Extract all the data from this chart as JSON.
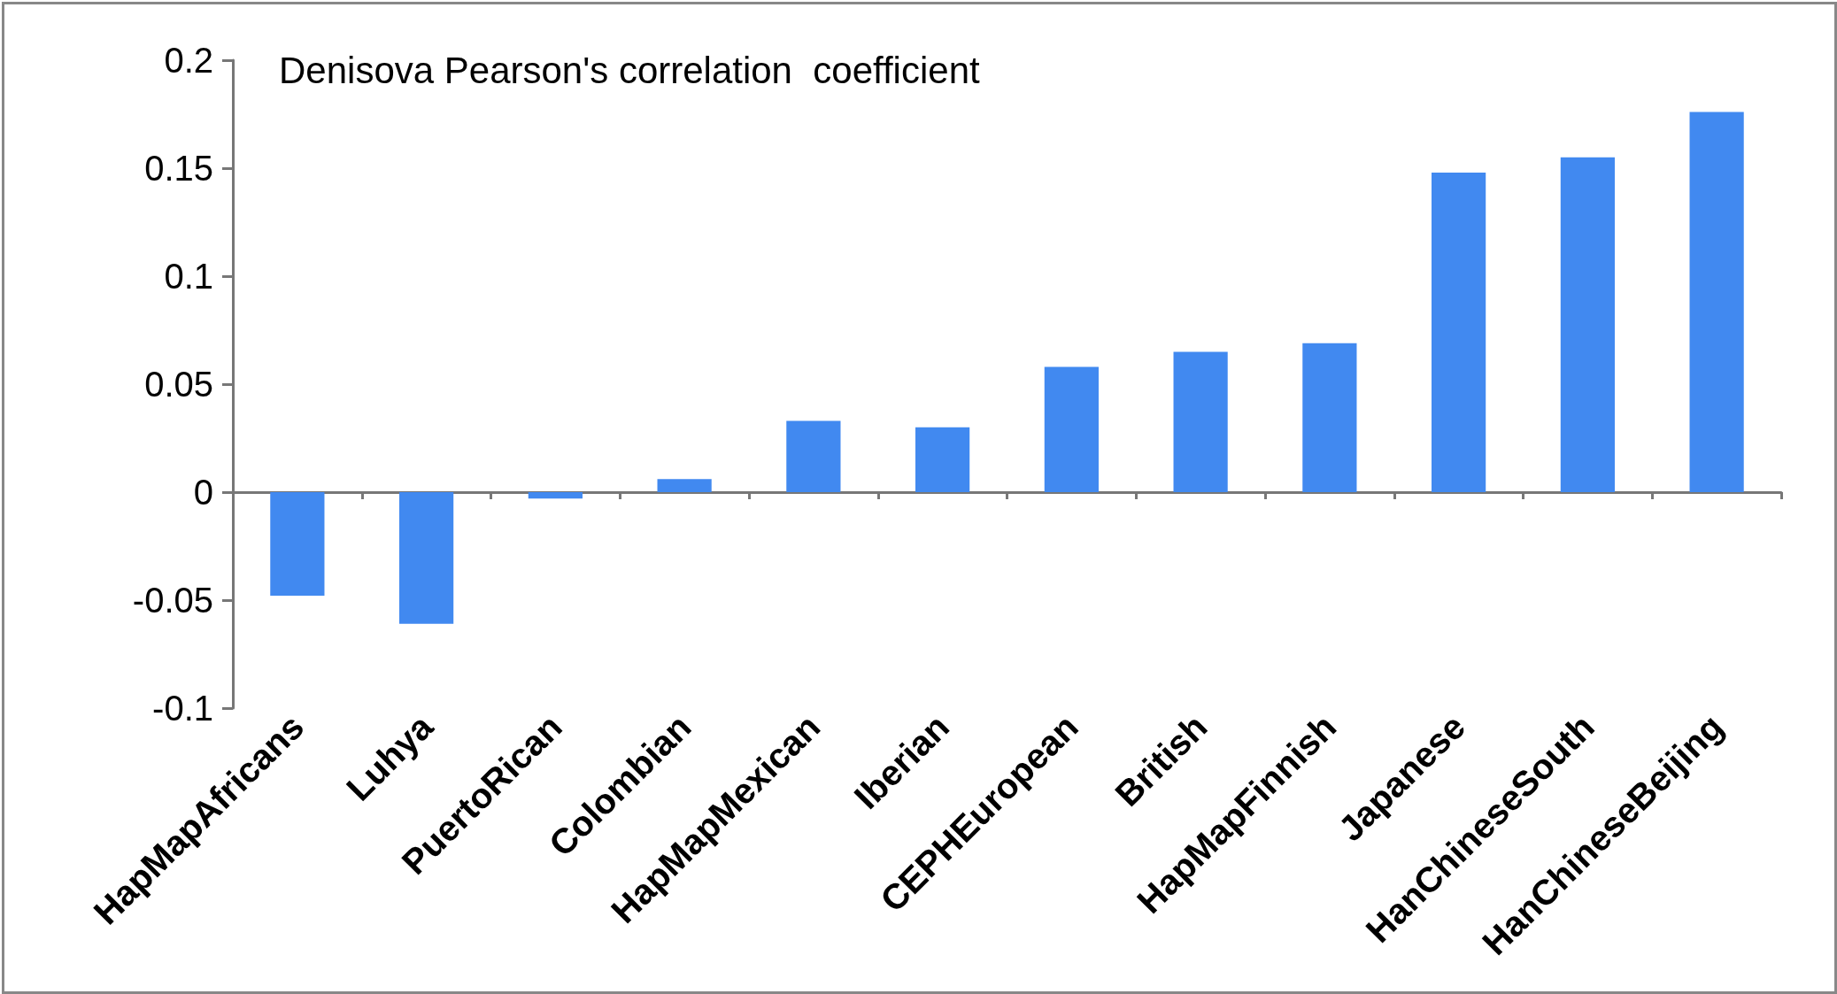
{
  "chart_data": {
    "type": "bar",
    "title": "Denisova Pearson's correlation  coefficient",
    "categories": [
      "HapMapAfricans",
      "Luhya",
      "PuertoRican",
      "Colombian",
      "HapMapMexican",
      "Iberian",
      "CEPHEuropean",
      "British",
      "HapMapFinnish",
      "Japanese",
      "HanChineseSouth",
      "HanChineseBeijing"
    ],
    "values": [
      -0.048,
      -0.061,
      -0.003,
      0.006,
      0.033,
      0.03,
      0.058,
      0.065,
      0.069,
      0.148,
      0.155,
      0.176
    ],
    "color": "#4189f0",
    "ylim": [
      -0.1,
      0.2
    ],
    "yticks": [
      -0.1,
      -0.05,
      0,
      0.05,
      0.1,
      0.15,
      0.2
    ]
  }
}
